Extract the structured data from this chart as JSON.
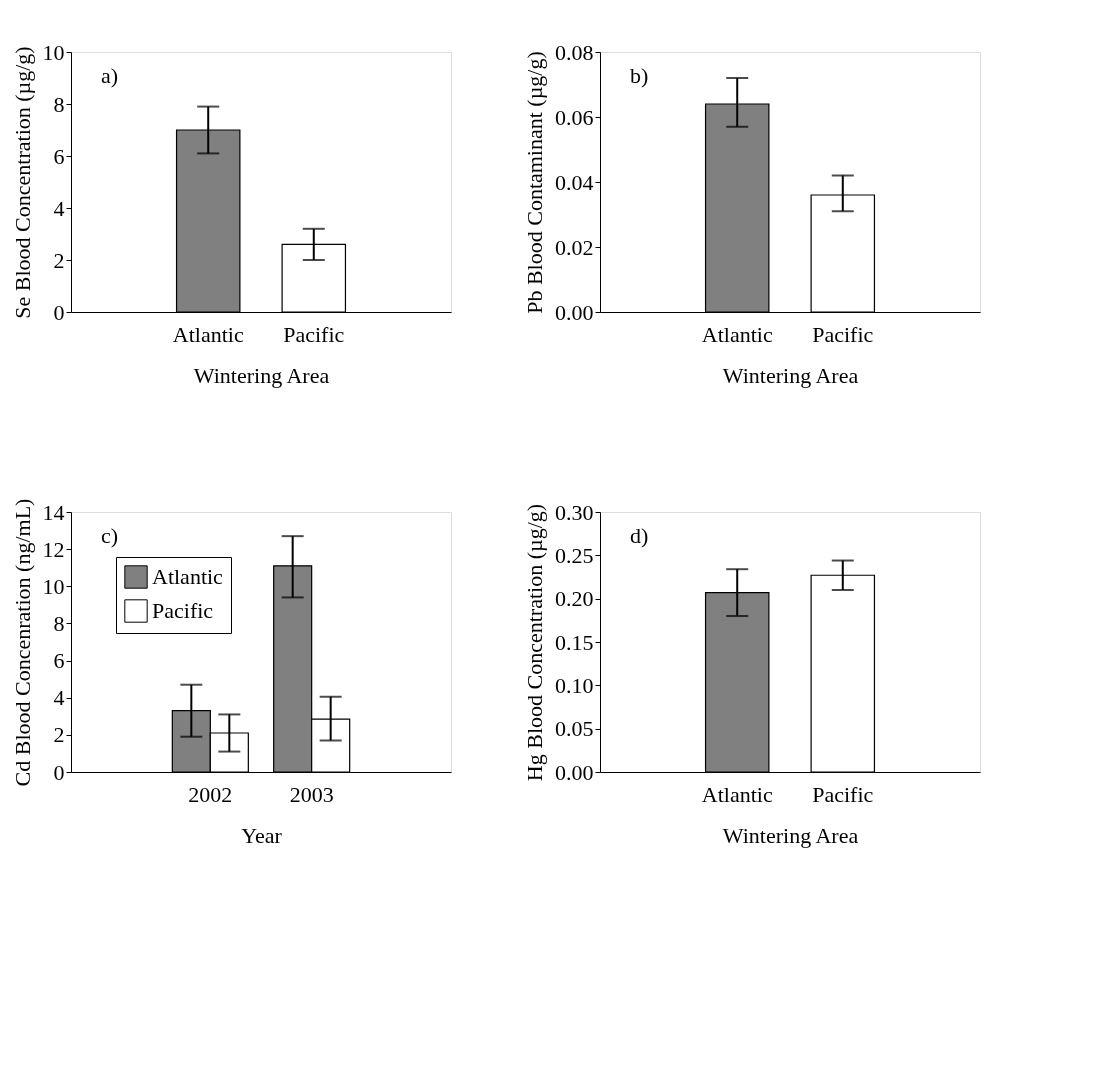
{
  "chart_data": [
    {
      "type": "bar",
      "categories": [
        "Atlantic",
        "Pacific"
      ],
      "values": [
        7.0,
        2.6
      ],
      "colors": [
        "#808080",
        "#ffffff"
      ],
      "errors": [
        [
          6.1,
          7.9
        ],
        [
          2.0,
          3.2
        ]
      ],
      "xlabel": "Wintering Area",
      "ylabel": "Se Blood Concentration (µg/g)",
      "ylim": [
        0,
        10
      ],
      "yticks": [
        0,
        2,
        4,
        6,
        8,
        10
      ],
      "annotations": [
        "a)"
      ],
      "grid": false
    },
    {
      "type": "bar",
      "categories": [
        "Atlantic",
        "Pacific"
      ],
      "values": [
        0.064,
        0.036
      ],
      "colors": [
        "#808080",
        "#ffffff"
      ],
      "errors": [
        [
          0.057,
          0.072
        ],
        [
          0.031,
          0.042
        ]
      ],
      "xlabel": "Wintering Area",
      "ylabel": "Pb Blood Contaminant (µg/g)",
      "ylim": [
        0,
        0.08
      ],
      "yticks": [
        {
          "value": 0,
          "label": "0.00"
        },
        0.02,
        0.04,
        0.06,
        0.08
      ],
      "annotations": [
        "b)"
      ],
      "grid": false
    },
    {
      "type": "bar",
      "categories": [
        "2002",
        "2003"
      ],
      "series": [
        {
          "name": "Atlantic",
          "color": "#808080",
          "values": [
            3.3,
            11.1
          ],
          "errors": [
            [
              1.9,
              4.7
            ],
            [
              9.4,
              12.7
            ]
          ]
        },
        {
          "name": "Pacific",
          "color": "#ffffff",
          "values": [
            2.1,
            2.85
          ],
          "errors": [
            [
              1.1,
              3.1
            ],
            [
              1.7,
              4.05
            ]
          ]
        }
      ],
      "xlabel": "Year",
      "ylabel": "Cd Blood Concenration (ng/mL)",
      "ylim": [
        0,
        14
      ],
      "yticks": [
        0,
        2,
        4,
        6,
        8,
        10,
        12,
        14
      ],
      "annotations": [
        "c)"
      ],
      "grid": false,
      "legend": "top left"
    },
    {
      "type": "bar",
      "categories": [
        "Atlantic",
        "Pacific"
      ],
      "values": [
        0.207,
        0.227
      ],
      "colors": [
        "#808080",
        "#ffffff"
      ],
      "errors": [
        [
          0.18,
          0.234
        ],
        [
          0.21,
          0.244
        ]
      ],
      "xlabel": "Wintering Area",
      "ylabel": "Hg Blood Concentration (µg/g)",
      "ylim": [
        0,
        0.3
      ],
      "yticks": [
        {
          "value": 0,
          "label": "0.00"
        },
        0.05,
        {
          "value": 0.1,
          "label": "0.10"
        },
        0.15,
        {
          "value": 0.2,
          "label": "0.20"
        },
        0.25,
        {
          "value": 0.3,
          "label": "0.30"
        }
      ],
      "annotations": [
        "d)"
      ],
      "grid": false
    }
  ]
}
